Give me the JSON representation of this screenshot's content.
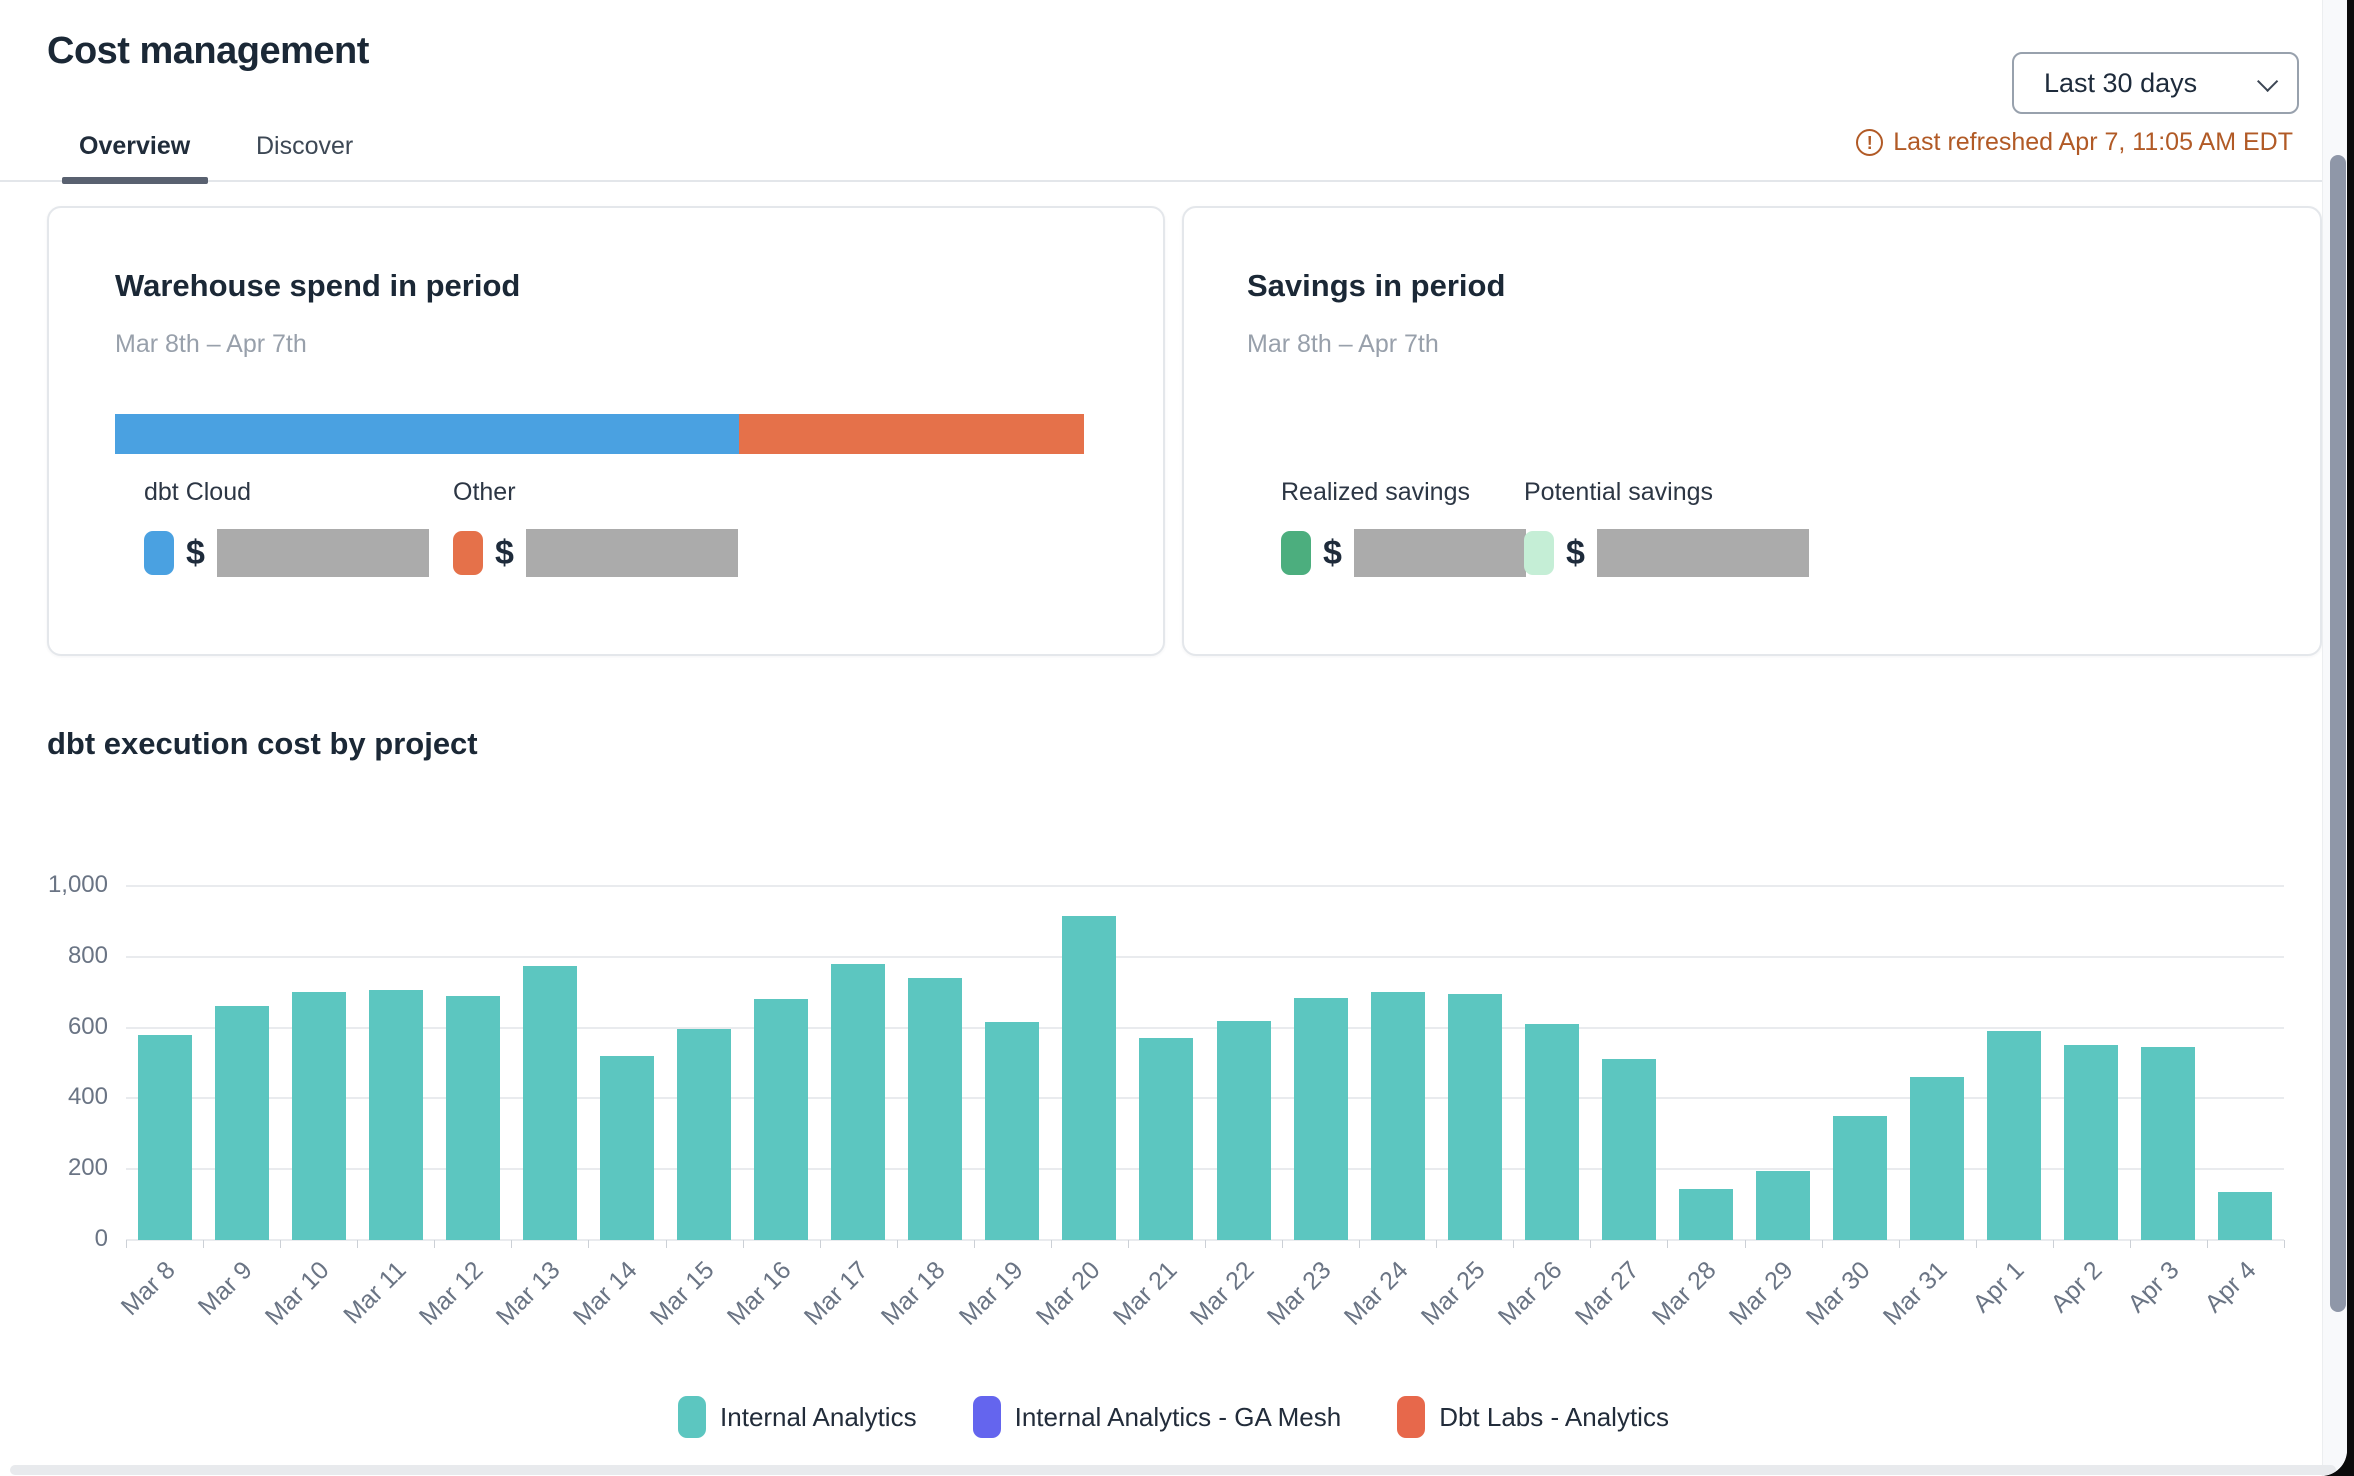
{
  "header": {
    "title": "Cost management",
    "date_range": {
      "value": "Last 30 days"
    },
    "last_refreshed": "Last refreshed Apr 7, 11:05 AM EDT",
    "tabs": [
      {
        "label": "Overview",
        "active": true
      },
      {
        "label": "Discover",
        "active": false
      }
    ]
  },
  "cards": {
    "warehouse_spend": {
      "title": "Warehouse spend in period",
      "subtitle": "Mar 8th – Apr 7th",
      "segments": [
        {
          "label": "dbt Cloud",
          "color": "#4aa1e1",
          "fraction": 0.644,
          "value_prefix": "$",
          "value_redacted": true
        },
        {
          "label": "Other",
          "color": "#e5714a",
          "fraction": 0.356,
          "value_prefix": "$",
          "value_redacted": true
        }
      ]
    },
    "savings": {
      "title": "Savings in period",
      "subtitle": "Mar 8th – Apr 7th",
      "items": [
        {
          "label": "Realized savings",
          "color": "#4cae7e",
          "value_prefix": "$",
          "value_redacted": true
        },
        {
          "label": "Potential savings",
          "color": "#c5eed6",
          "value_prefix": "$",
          "value_redacted": true
        }
      ]
    }
  },
  "chart_section": {
    "title": "dbt execution cost by project"
  },
  "chart_data": {
    "type": "bar",
    "title": "dbt execution cost by project",
    "categories": [
      "Mar 8",
      "Mar 9",
      "Mar 10",
      "Mar 11",
      "Mar 12",
      "Mar 13",
      "Mar 14",
      "Mar 15",
      "Mar 16",
      "Mar 17",
      "Mar 18",
      "Mar 19",
      "Mar 20",
      "Mar 21",
      "Mar 22",
      "Mar 23",
      "Mar 24",
      "Mar 25",
      "Mar 26",
      "Mar 27",
      "Mar 28",
      "Mar 29",
      "Mar 30",
      "Mar 31",
      "Apr 1",
      "Apr 2",
      "Apr 3",
      "Apr 4"
    ],
    "series": [
      {
        "name": "Internal Analytics",
        "color": "#5cc6c0",
        "values": [
          580,
          660,
          700,
          705,
          690,
          775,
          520,
          595,
          680,
          780,
          740,
          615,
          915,
          570,
          620,
          685,
          700,
          695,
          610,
          510,
          145,
          195,
          350,
          460,
          590,
          550,
          545,
          135
        ]
      },
      {
        "name": "Internal Analytics - GA Mesh",
        "color": "#6465ee",
        "values": []
      },
      {
        "name": "Dbt Labs - Analytics",
        "color": "#e7684b",
        "values": []
      }
    ],
    "xlabel": "",
    "ylabel": "",
    "ylim": [
      0,
      1000
    ],
    "ytick_values": [
      0,
      200,
      400,
      600,
      800,
      1000
    ],
    "ytick_labels": [
      "0",
      "200",
      "400",
      "600",
      "800",
      "1,000"
    ],
    "grid": true,
    "legend_position": "bottom"
  }
}
